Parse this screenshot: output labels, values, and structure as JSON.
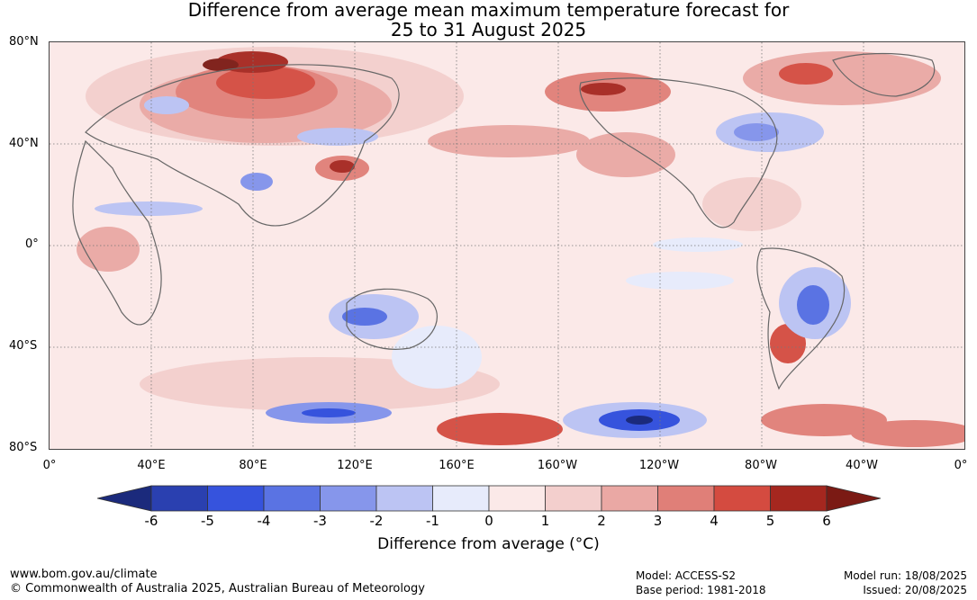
{
  "title": {
    "line1": "Difference from average mean maximum temperature forecast for",
    "line2": "25 to 31 August 2025"
  },
  "map": {
    "latitude_labels": [
      "80°N",
      "40°N",
      "0°",
      "40°S",
      "80°S"
    ],
    "longitude_labels": [
      "0°",
      "40°E",
      "80°E",
      "120°E",
      "160°E",
      "160°W",
      "120°W",
      "80°W",
      "40°W",
      "0°"
    ],
    "gridlines": "dotted"
  },
  "colorbar": {
    "label": "Difference from average (°C)",
    "ticks": [
      "-6",
      "-5",
      "-4",
      "-3",
      "-2",
      "-1",
      "0",
      "1",
      "2",
      "3",
      "4",
      "5",
      "6"
    ],
    "colors": [
      "#1b2a7c",
      "#2a40b0",
      "#3653dd",
      "#5a73e3",
      "#8696eb",
      "#bcc4f3",
      "#e7ebfb",
      "#fbe9e8",
      "#f3cfcd",
      "#eaa8a4",
      "#e07f78",
      "#d44b40",
      "#a5271f",
      "#7b1a14"
    ]
  },
  "footer": {
    "website": "www.bom.gov.au/climate",
    "copyright": "© Commonwealth of Australia 2025, Australian Bureau of Meteorology",
    "model": "Model: ACCESS-S2",
    "base_period": "Base period: 1981-2018",
    "model_run": "Model run: 18/08/2025",
    "issued": "Issued: 20/08/2025"
  }
}
